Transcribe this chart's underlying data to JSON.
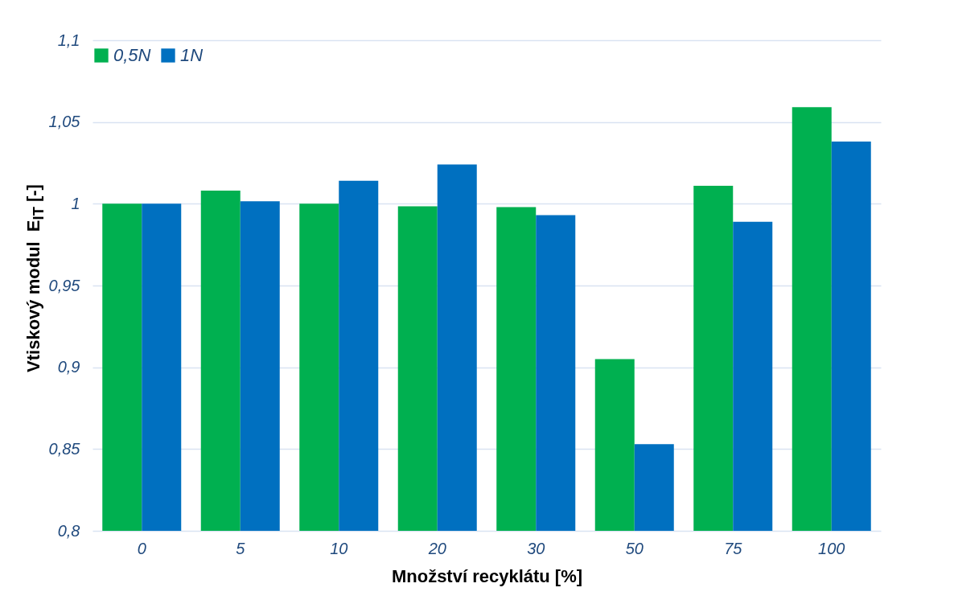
{
  "chart_data": {
    "type": "bar",
    "xlabel": "Množství recyklátu [%]",
    "ylabel": "Vtiskový modul  E$_{IT}$ [-]",
    "categories": [
      "0",
      "5",
      "10",
      "20",
      "30",
      "50",
      "75",
      "100"
    ],
    "series": [
      {
        "name": "0,5N",
        "color": "#00b050",
        "values": [
          1.0,
          1.008,
          1.0,
          0.9985,
          0.998,
          0.905,
          1.011,
          1.059
        ]
      },
      {
        "name": "1N",
        "color": "#0070c0",
        "values": [
          1.0,
          1.0015,
          1.014,
          1.024,
          0.993,
          0.853,
          0.989,
          1.038
        ]
      }
    ],
    "ylim": [
      0.8,
      1.1
    ],
    "yticks": [
      {
        "value": 0.8,
        "label": "0,8"
      },
      {
        "value": 0.85,
        "label": "0,85"
      },
      {
        "value": 0.9,
        "label": "0,9"
      },
      {
        "value": 0.95,
        "label": "0,95"
      },
      1,
      {
        "value": 1.05,
        "label": "1,05"
      },
      {
        "value": 1.1,
        "label": "1,1"
      }
    ],
    "grid": "y",
    "legend": "top"
  }
}
